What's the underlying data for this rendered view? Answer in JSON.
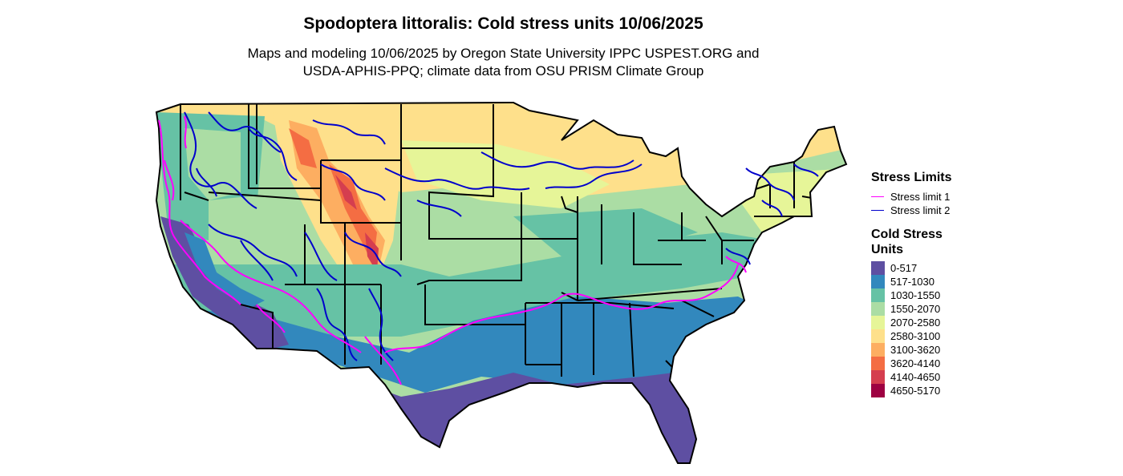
{
  "title": "Spodoptera littoralis: Cold stress units 10/06/2025",
  "subtitle_line1": "Maps and modeling 10/06/2025 by Oregon State University IPPC USPEST.ORG and",
  "subtitle_line2": "USDA-APHIS-PPQ; climate data from OSU PRISM Climate Group",
  "legend": {
    "limits_title": "Stress Limits",
    "limits": [
      {
        "label": "Stress limit 1",
        "color": "#ff00ff"
      },
      {
        "label": "Stress limit 2",
        "color": "#0000cc"
      }
    ],
    "units_title": "Cold Stress Units",
    "classes": [
      {
        "label": "0-517",
        "color": "#5e4fa2"
      },
      {
        "label": "517-1030",
        "color": "#3288bd"
      },
      {
        "label": "1030-1550",
        "color": "#66c2a5"
      },
      {
        "label": "1550-2070",
        "color": "#abdda4"
      },
      {
        "label": "2070-2580",
        "color": "#e6f598"
      },
      {
        "label": "2580-3100",
        "color": "#fee08b"
      },
      {
        "label": "3100-3620",
        "color": "#fdae61"
      },
      {
        "label": "3620-4140",
        "color": "#f46d43"
      },
      {
        "label": "4140-4650",
        "color": "#d53e4f"
      },
      {
        "label": "4650-5170",
        "color": "#9e0142"
      }
    ]
  }
}
